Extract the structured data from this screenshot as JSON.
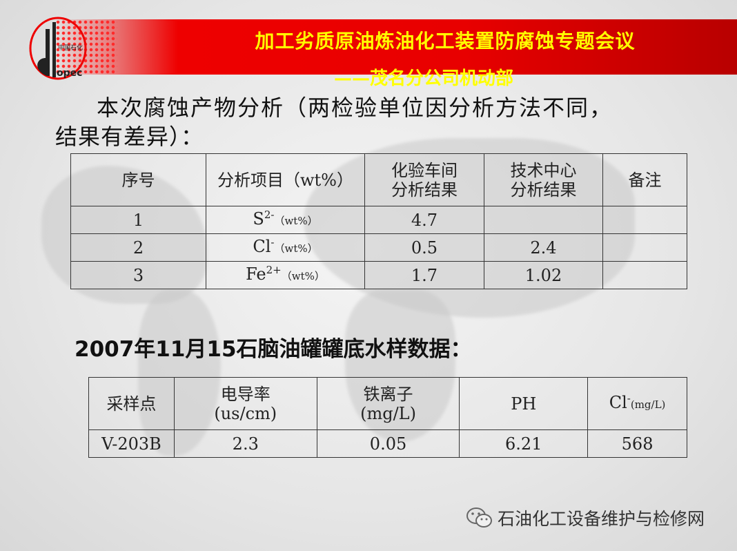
{
  "header": {
    "title": "加工劣质原油炼油化工装置防腐蚀专题会议",
    "subtitle": "——茂名分公司机动部",
    "logo_text": "中国石化 SINOPEC",
    "accent": "#e80000",
    "title_color": "#ffff00"
  },
  "section1": {
    "heading_line1": "本次腐蚀产物分析（两检验单位因分析方法不同，",
    "heading_line2": "结果有差异）：",
    "table": {
      "headers": [
        "序号",
        "分析项目（wt%）",
        "化验车间",
        "分析结果",
        "技术中心",
        "分析结果",
        "备注"
      ],
      "rows": [
        {
          "no": "1",
          "item": "S",
          "sup": "2-",
          "unit": "（wt%）",
          "lab": "4.7",
          "center": "",
          "note": ""
        },
        {
          "no": "2",
          "item": "Cl",
          "sup": "-",
          "unit": "（wt%）",
          "lab": "0.5",
          "center": "2.4",
          "note": ""
        },
        {
          "no": "3",
          "item": "Fe",
          "sup": "2+",
          "unit": "（wt%）",
          "lab": "1.7",
          "center": "1.02",
          "note": ""
        }
      ]
    }
  },
  "section2": {
    "heading": "2007年11月15石脑油罐罐底水样数据：",
    "table": {
      "headers": [
        "采样点",
        "电导率",
        "(us/cm)",
        "铁离子",
        "(mg/L)",
        "PH",
        "Cl",
        "-",
        "(mg/L)"
      ],
      "rows": [
        {
          "point": "V-203B",
          "conductivity": "2.3",
          "iron": "0.05",
          "ph": "6.21",
          "cl": "568"
        }
      ]
    }
  },
  "watermark": {
    "text": "石油化工设备维护与检修网",
    "icon": "wechat-icon"
  }
}
